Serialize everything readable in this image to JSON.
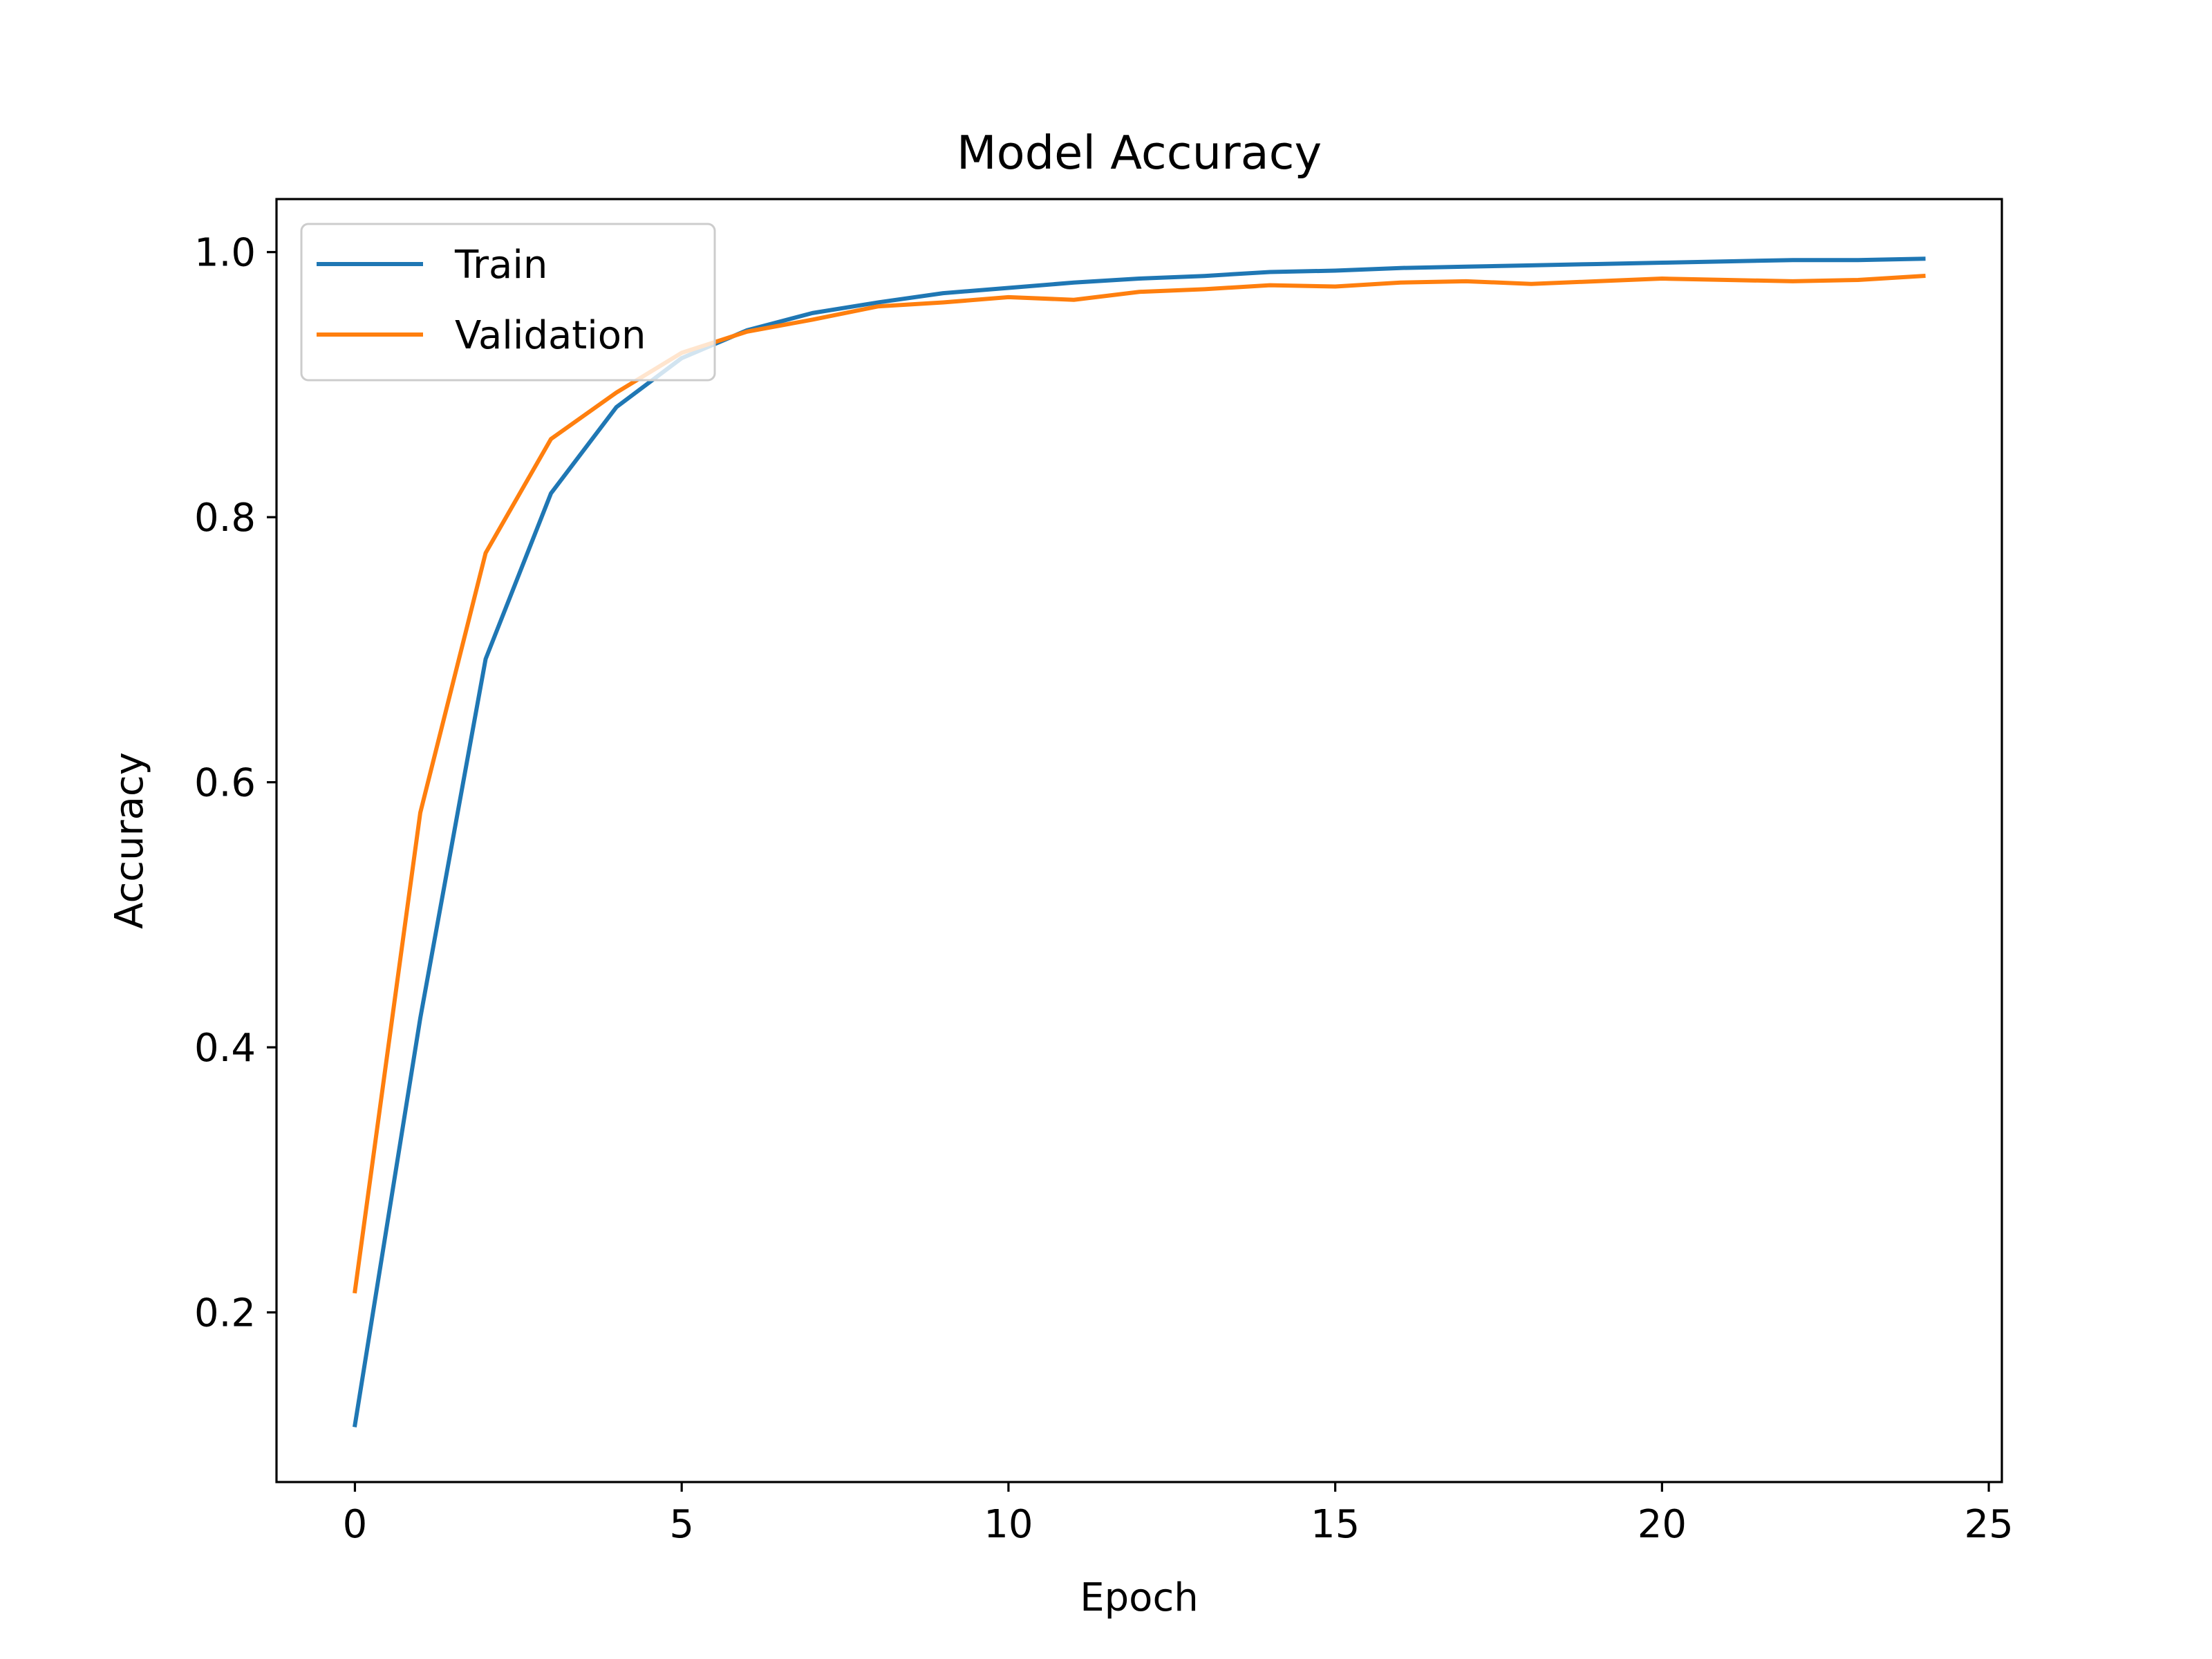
{
  "chart_data": {
    "type": "line",
    "title": "Model Accuracy",
    "xlabel": "Epoch",
    "ylabel": "Accuracy",
    "x": [
      0,
      1,
      2,
      3,
      4,
      5,
      6,
      7,
      8,
      9,
      10,
      11,
      12,
      13,
      14,
      15,
      16,
      17,
      18,
      19,
      20,
      21,
      22,
      23,
      24
    ],
    "xlim": [
      -1.2,
      25.2
    ],
    "ylim": [
      0.072,
      1.04
    ],
    "xticks": [
      0,
      5,
      10,
      15,
      20,
      25
    ],
    "xtick_labels": [
      "0",
      "5",
      "10",
      "15",
      "20",
      "25"
    ],
    "yticks": [
      0.2,
      0.4,
      0.6,
      0.8,
      1.0
    ],
    "ytick_labels": [
      "0.2",
      "0.4",
      "0.6",
      "0.8",
      "1.0"
    ],
    "grid": false,
    "legend_position": "upper-left",
    "series": [
      {
        "name": "Train",
        "color": "#1f77b4",
        "values": [
          0.115,
          0.422,
          0.693,
          0.818,
          0.883,
          0.92,
          0.941,
          0.954,
          0.962,
          0.969,
          0.973,
          0.977,
          0.98,
          0.982,
          0.985,
          0.986,
          0.988,
          0.989,
          0.99,
          0.991,
          0.992,
          0.993,
          0.994,
          0.994,
          0.995
        ]
      },
      {
        "name": "Validation",
        "color": "#ff7f0e",
        "values": [
          0.216,
          0.577,
          0.773,
          0.859,
          0.894,
          0.924,
          0.94,
          0.949,
          0.959,
          0.962,
          0.966,
          0.964,
          0.97,
          0.972,
          0.975,
          0.974,
          0.977,
          0.978,
          0.976,
          0.978,
          0.98,
          0.979,
          0.978,
          0.979,
          0.982
        ]
      }
    ]
  }
}
